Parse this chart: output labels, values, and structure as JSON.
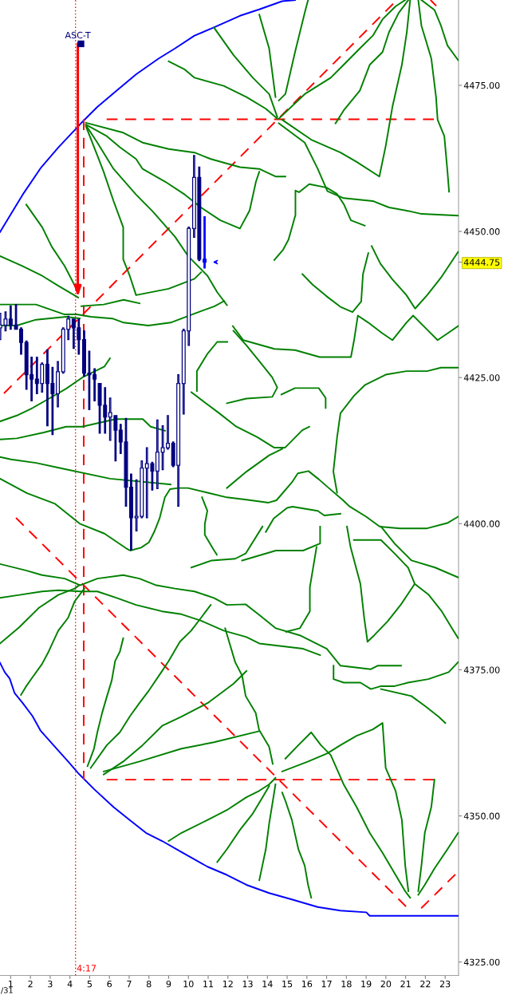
{
  "chart_data": {
    "type": "candlestick",
    "x": [
      0.47,
      0.74,
      1.0,
      1.27,
      1.53,
      1.8,
      2.06,
      2.33,
      2.59,
      2.86,
      3.12,
      3.39,
      3.66,
      3.92,
      4.19,
      4.45,
      4.72,
      4.98,
      5.25,
      5.51,
      5.78,
      6.04,
      6.31,
      6.57,
      6.84,
      7.1,
      7.37,
      7.64,
      7.9,
      8.17,
      8.43,
      8.7,
      8.96,
      9.23,
      9.49,
      9.76,
      10.02,
      10.29,
      10.55,
      10.82
    ],
    "ohlc": [
      [
        4433.5,
        4436.0,
        4431.5,
        4434.0
      ],
      [
        4434.0,
        4436.25,
        4433.0,
        4435.0
      ],
      [
        4435.0,
        4437.25,
        4433.25,
        4434.0
      ],
      [
        4434.0,
        4437.5,
        4433.25,
        4433.25
      ],
      [
        4433.25,
        4433.5,
        4429.0,
        4431.0
      ],
      [
        4431.0,
        4431.25,
        4423.0,
        4425.5
      ],
      [
        4425.5,
        4428.5,
        4421.0,
        4424.75
      ],
      [
        4424.75,
        4428.5,
        4422.25,
        4424.0
      ],
      [
        4424.0,
        4427.5,
        4422.5,
        4427.25
      ],
      [
        4427.25,
        4429.75,
        4416.75,
        4424.0
      ],
      [
        4424.0,
        4426.75,
        4415.25,
        4422.25
      ],
      [
        4422.25,
        4427.75,
        4420.0,
        4426.0
      ],
      [
        4426.0,
        4433.5,
        4425.75,
        4433.25
      ],
      [
        4433.25,
        4435.5,
        4431.5,
        4435.0
      ],
      [
        4435.0,
        4435.0,
        4430.0,
        4433.5
      ],
      [
        4433.5,
        4435.0,
        4429.0,
        4431.5
      ],
      [
        4431.5,
        4433.0,
        4425.25,
        4425.75
      ],
      [
        4425.75,
        4429.5,
        4419.5,
        4425.5
      ],
      [
        4425.5,
        4426.5,
        4421.0,
        4424.75
      ],
      [
        4424.0,
        4424.0,
        4415.5,
        4420.25
      ],
      [
        4420.25,
        4423.25,
        4415.5,
        4418.25
      ],
      [
        4418.25,
        4421.5,
        4414.25,
        4419.0
      ],
      [
        4418.5,
        4418.5,
        4410.75,
        4416.0
      ],
      [
        4416.0,
        4417.0,
        4412.0,
        4414.0
      ],
      [
        4414.0,
        4418.0,
        4403.0,
        4406.25
      ],
      [
        4406.25,
        4408.5,
        4395.5,
        4401.0
      ],
      [
        4401.0,
        4407.5,
        4398.75,
        4401.25
      ],
      [
        4401.25,
        4410.75,
        4401.0,
        4409.5
      ],
      [
        4409.5,
        4413.0,
        4401.0,
        4410.25
      ],
      [
        4410.25,
        4410.5,
        4405.75,
        4409.0
      ],
      [
        4409.0,
        4417.75,
        4406.0,
        4412.25
      ],
      [
        4412.25,
        4416.75,
        4409.25,
        4413.0
      ],
      [
        4413.0,
        4418.5,
        4412.75,
        4413.75
      ],
      [
        4413.75,
        4414.0,
        4409.75,
        4410.0
      ],
      [
        4410.0,
        4425.5,
        4403.0,
        4424.0
      ],
      [
        4424.0,
        4433.25,
        4418.75,
        4433.0
      ],
      [
        4433.0,
        4450.75,
        4430.5,
        4450.5
      ],
      [
        4450.5,
        4463.0,
        4449.0,
        4459.25
      ],
      [
        4459.25,
        4461.0,
        4445.0,
        4445.25
      ],
      [
        4445.25,
        4452.5,
        4443.75,
        4444.75
      ]
    ],
    "colors": [
      "#000080",
      "#000080",
      "#000080",
      "#000080",
      "#000080",
      "#000080",
      "#000080",
      "#000080",
      "#000080",
      "#000080",
      "#000080",
      "#000080",
      "#000080",
      "#000080",
      "#000080",
      "#000080",
      "#000080",
      "#000080",
      "#000080",
      "#000080",
      "#000080",
      "#000080",
      "#000080",
      "#000080",
      "#000080",
      "#000080",
      "#000080",
      "#000080",
      "#000080",
      "#000080",
      "#000080",
      "#000080",
      "#000080",
      "#000080",
      "#000080",
      "#000080",
      "#000080",
      "#000080",
      "#000080",
      "#0000ff"
    ],
    "xlim": [
      0.46,
      23.68
    ],
    "ylim": [
      4322.7,
      4489.6
    ],
    "xticks": [
      1,
      2,
      3,
      4,
      5,
      6,
      7,
      8,
      9,
      10,
      11,
      12,
      13,
      14,
      15,
      16,
      17,
      18,
      19,
      20,
      21,
      22,
      23
    ],
    "yticks": [
      {
        "value": 4325,
        "label": "4325.00"
      },
      {
        "value": 4350,
        "label": "4350.00"
      },
      {
        "value": 4375,
        "label": "4375.00"
      },
      {
        "value": 4400,
        "label": "4400.00"
      },
      {
        "value": 4425,
        "label": "4425.00"
      },
      4444.75,
      {
        "value": 4450,
        "label": "4450.00"
      },
      {
        "value": 4475,
        "label": "4475.00"
      }
    ],
    "ref_lines": [
      {
        "axis": "x",
        "value": 4.2833,
        "label": "4:17",
        "color": "#ff0000",
        "line_style": "dotted"
      }
    ],
    "annotations": [
      {
        "text": "ASC-T",
        "x": 4.4,
        "y": 4438.8
      },
      "/31"
    ],
    "series": [
      {
        "type": "line",
        "color": "#0000ff",
        "x": [
          0.46,
          1.61,
          2.51,
          3.42,
          4.56,
          5.39,
          6.37,
          7.36,
          8.5,
          9.32,
          10.31,
          11.29,
          12.61,
          13.59,
          14.75,
          15.4
        ],
        "values": [
          4449.9,
          4456.3,
          4460.8,
          4464.4,
          4468.5,
          4471.3,
          4474.1,
          4476.9,
          4479.6,
          4481.3,
          4483.5,
          4484.9,
          4486.9,
          4488.0,
          4489.4,
          4489.6
        ]
      },
      {
        "type": "line",
        "color": "#0000ff",
        "x": [
          0.46,
          0.7,
          0.95,
          1.2,
          1.61,
          2.1,
          2.51,
          3.33,
          3.91,
          4.48,
          5.22,
          6.21,
          7.03,
          7.85,
          8.67,
          9.65,
          10.97,
          11.95,
          12.94,
          14.09,
          15.24,
          16.55,
          17.7,
          19.01,
          19.18,
          23.66
        ],
        "values": [
          4376.2,
          4374.6,
          4373.5,
          4371.0,
          4369.3,
          4367.1,
          4364.6,
          4361.5,
          4359.3,
          4357.1,
          4354.6,
          4351.5,
          4349.3,
          4347.1,
          4345.7,
          4343.8,
          4341.3,
          4339.9,
          4338.2,
          4336.8,
          4335.7,
          4334.4,
          4333.8,
          4333.5,
          4332.9,
          4332.9
        ]
      },
      {
        "type": "line",
        "color": "#ff0000",
        "line_style": "dashed",
        "x": [
          5.86,
          22.5
        ],
        "values": [
          4469.2,
          4469.2
        ]
      },
      {
        "type": "line",
        "color": "#ff0000",
        "line_style": "dashed",
        "x": [
          5.86,
          22.5
        ],
        "values": [
          4356.2,
          4356.2
        ]
      },
      {
        "type": "line",
        "color": "#ff0000",
        "line_style": "dashed",
        "x": [
          4.7,
          4.7
        ],
        "values": [
          4469.2,
          4356.2
        ]
      },
      {
        "type": "line",
        "color": "#ff0000",
        "line_style": "dashed",
        "x": [
          0.66,
          20.53
        ],
        "values": [
          4422.3,
          4489.5
        ]
      },
      {
        "type": "line",
        "color": "#ff0000",
        "line_style": "dashed",
        "x": [
          1.27,
          21.14
        ],
        "values": [
          4401.0,
          4334.1
        ]
      },
      {
        "type": "line",
        "color": "#ff0000",
        "line_style": "dashed",
        "x": [
          21.79,
          23.64
        ],
        "values": [
          4334.2,
          4340.4
        ]
      },
      {
        "type": "line",
        "color": "#ff0000",
        "line_style": "dashed",
        "x": [
          22.26,
          22.55
        ],
        "values": [
          4489.6,
          4488.6
        ]
      },
      {
        "type": "line",
        "color": "#008000",
        "x": [
          0.46,
          1.59,
          2.6,
          3.41,
          4.42
        ],
        "values": [
          4445.8,
          4444.1,
          4442.4,
          4440.7,
          4438.7
        ]
      },
      {
        "type": "line",
        "color": "#008000",
        "x": [
          1.79,
          2.6,
          3.08,
          3.73,
          4.42
        ],
        "values": [
          4454.6,
          4450.7,
          4447.4,
          4444.1,
          4439.6
        ]
      },
      {
        "type": "line",
        "color": "#008000",
        "x": [
          0.46,
          2.28,
          3.73,
          4.34,
          5.06,
          6.15,
          6.72,
          7.97,
          9.1,
          10.19,
          11.32,
          11.81
        ],
        "values": [
          4437.5,
          4437.5,
          4435.8,
          4435.8,
          4435.4,
          4435.1,
          4434.4,
          4433.9,
          4434.4,
          4435.8,
          4437.2,
          4438.1
        ]
      },
      {
        "type": "line",
        "color": "#008000",
        "x": [
          4.58,
          5.71,
          6.72,
          7.53
        ],
        "values": [
          4437.2,
          4437.5,
          4438.3,
          4437.7
        ]
      },
      {
        "type": "line",
        "color": "#008000",
        "x": [
          0.46,
          1.31,
          2.28,
          3.81,
          4.5
        ],
        "values": [
          4433.9,
          4433.9,
          4434.9,
          4435.4,
          4435.1
        ]
      },
      {
        "type": "line",
        "color": "#008000",
        "x": [
          0.46,
          1.31,
          2.11,
          2.84,
          3.81,
          4.62,
          5.75,
          6.03
        ],
        "values": [
          4417.5,
          4418.5,
          4419.8,
          4421.2,
          4423.1,
          4425.0,
          4426.9,
          4428.3
        ]
      },
      {
        "type": "line",
        "color": "#008000",
        "x": [
          0.46,
          1.31,
          2.68,
          3.81,
          4.62,
          6.31,
          7.69,
          8.09,
          8.82
        ],
        "values": [
          4414.4,
          4414.6,
          4415.6,
          4416.6,
          4416.6,
          4417.9,
          4417.9,
          4416.6,
          4415.9
        ]
      },
      {
        "type": "line",
        "color": "#008000",
        "x": [
          0.46,
          1.02,
          2.28,
          3.53,
          6.03,
          9.1
        ],
        "values": [
          4411.4,
          4411.0,
          4410.4,
          4409.5,
          4407.7,
          4406.7
        ]
      },
      {
        "type": "line",
        "color": "#008000",
        "x": [
          0.46,
          1.83,
          3.25,
          4.5,
          5.75,
          6.84,
          7.05,
          7.6,
          8.0,
          8.27,
          8.54,
          8.81,
          9.07,
          9.48,
          9.98,
          10.97,
          11.95,
          12.94,
          14.06,
          14.46,
          15.27,
          15.54,
          16.08,
          16.6,
          17.11,
          17.8,
          18.14,
          19.0,
          19.69,
          20.71,
          22.09,
          23.11,
          23.66
        ],
        "values": [
          4407.7,
          4405.2,
          4403.4,
          4400.0,
          4398.3,
          4395.8,
          4395.4,
          4395.9,
          4396.8,
          4398.6,
          4400.9,
          4404.5,
          4405.9,
          4406.1,
          4406.1,
          4405.3,
          4404.5,
          4404.1,
          4403.6,
          4404.0,
          4407.2,
          4408.6,
          4409.0,
          4407.6,
          4406.1,
          4404.1,
          4403.0,
          4401.2,
          4399.5,
          4399.2,
          4399.2,
          4400.1,
          4401.2
        ]
      },
      {
        "type": "line",
        "color": "#008000",
        "x": [
          4.81,
          6.7,
          7.68,
          9.0,
          10.31,
          11.13,
          12.61,
          13.59,
          14.41,
          14.91
        ],
        "values": [
          4468.6,
          4466.9,
          4465.2,
          4464.1,
          4463.5,
          4462.4,
          4461.0,
          4460.7,
          4459.4,
          4459.4
        ]
      },
      {
        "type": "line",
        "color": "#008000",
        "x": [
          4.81,
          5.87,
          6.53,
          7.35,
          7.68,
          8.83,
          9.82,
          10.64,
          11.62,
          12.61,
          13.1,
          13.42,
          13.59
        ],
        "values": [
          4468.3,
          4466.3,
          4464.4,
          4462.4,
          4460.7,
          4458.5,
          4456.3,
          4454.1,
          4451.9,
          4450.5,
          4453.6,
          4458.5,
          4460.2
        ]
      },
      {
        "type": "line",
        "color": "#008000",
        "x": [
          4.81,
          5.39,
          5.71,
          6.21,
          6.7,
          6.7,
          7.03,
          7.35,
          9.0,
          10.31,
          10.64
        ],
        "values": [
          4468.0,
          4463.0,
          4460.2,
          4455.2,
          4450.7,
          4445.2,
          4442.4,
          4439.1,
          4440.2,
          4441.9,
          4443.0
        ]
      },
      {
        "type": "line",
        "color": "#008000",
        "x": [
          4.81,
          5.39,
          6.21,
          7.35,
          8.17,
          9.32,
          9.98,
          10.97,
          11.46,
          11.95
        ],
        "values": [
          4468.2,
          4465.2,
          4460.7,
          4456.3,
          4453.5,
          4449.1,
          4445.8,
          4442.4,
          4439.6,
          4437.4
        ]
      },
      {
        "type": "line",
        "color": "#008000",
        "x": [
          9.0,
          9.82,
          10.31,
          11.79,
          12.94,
          13.92,
          14.5
        ],
        "values": [
          4479.1,
          4477.7,
          4476.3,
          4474.9,
          4473.0,
          4471.0,
          4469.3
        ]
      },
      {
        "type": "line",
        "color": "#008000",
        "x": [
          11.29,
          12.28,
          13.26,
          14.09,
          14.5
        ],
        "values": [
          4484.9,
          4480.2,
          4476.3,
          4473.5,
          4469.6
        ]
      },
      {
        "type": "line",
        "color": "#008000",
        "x": [
          13.59,
          14.09,
          14.41
        ],
        "values": [
          4487.1,
          4481.3,
          4473.0
        ]
      },
      {
        "type": "line",
        "color": "#008000",
        "x": [
          16.06,
          15.89,
          15.4,
          14.91,
          14.58
        ],
        "values": [
          4489.6,
          4487.4,
          4480.7,
          4473.5,
          4472.4
        ]
      },
      {
        "type": "line",
        "color": "#008000",
        "x": [
          14.58,
          15.89,
          17.21,
          17.86,
          18.68,
          19.34,
          19.83,
          20.49,
          20.98
        ],
        "values": [
          4469.3,
          4473.5,
          4476.3,
          4478.5,
          4481.3,
          4483.5,
          4486.3,
          4488.5,
          4489.6
        ]
      },
      {
        "type": "line",
        "color": "#008000",
        "x": [
          17.45,
          17.86,
          18.68,
          19.18,
          19.83,
          20.16,
          20.65,
          21.14
        ],
        "values": [
          4468.5,
          4470.7,
          4474.1,
          4478.5,
          4480.7,
          4484.1,
          4487.4,
          4489.6
        ]
      },
      {
        "type": "line",
        "color": "#008000",
        "x": [
          14.75,
          16.22,
          17.7,
          18.52,
          19.67,
          19.99,
          20.33,
          20.81,
          21.06,
          21.23
        ],
        "values": [
          4469.1,
          4465.7,
          4463.5,
          4461.9,
          4459.4,
          4464.6,
          4471.3,
          4478.5,
          4484.1,
          4489.6
        ]
      },
      {
        "type": "line",
        "color": "#008000",
        "x": [
          21.64,
          21.8,
          22.3,
          22.54,
          22.62,
          22.96,
          23.12,
          23.2
        ],
        "values": [
          4489.6,
          4485.2,
          4479.6,
          4473.0,
          4469.1,
          4466.3,
          4460.2,
          4456.8
        ]
      },
      {
        "type": "line",
        "color": "#008000",
        "x": [
          21.8,
          22.46,
          22.79,
          23.12,
          23.66
        ],
        "values": [
          4489.6,
          4487.9,
          4485.2,
          4481.8,
          4479.3
        ]
      },
      {
        "type": "line",
        "color": "#008000",
        "x": [
          14.58,
          15.89,
          16.55,
          17.04,
          17.86,
          19.34,
          20.16,
          21.14,
          21.8,
          23.66
        ],
        "values": [
          4468.5,
          4465.2,
          4460.7,
          4456.9,
          4455.7,
          4455.2,
          4454.1,
          4453.5,
          4453.0,
          4452.7
        ]
      },
      {
        "type": "line",
        "color": "#008000",
        "x": [
          4.89,
          5.22,
          5.39,
          5.63,
          5.87,
          6.12,
          6.29,
          6.53,
          6.7
        ],
        "values": [
          4358.5,
          4361.5,
          4364.3,
          4367.6,
          4370.4,
          4373.2,
          4376.5,
          4378.1,
          4380.4
        ]
      },
      {
        "type": "line",
        "color": "#008000",
        "x": [
          5.05,
          5.87,
          6.53,
          7.03,
          7.52,
          8.01,
          8.67,
          9.0,
          9.57,
          10.14,
          10.64,
          11.13
        ],
        "values": [
          4358.2,
          4362.1,
          4364.3,
          4367.0,
          4369.3,
          4371.5,
          4374.8,
          4376.5,
          4379.8,
          4381.7,
          4383.9,
          4386.1
        ]
      },
      {
        "type": "line",
        "color": "#008000",
        "x": [
          5.71,
          7.52,
          9.65,
          11.29,
          13.58
        ],
        "values": [
          4357.6,
          4359.3,
          4361.5,
          4362.6,
          4364.5
        ]
      },
      {
        "type": "line",
        "color": "#008000",
        "x": [
          5.71,
          6.7,
          7.68,
          8.67,
          9.65,
          10.97,
          12.28,
          12.94
        ],
        "values": [
          4357.1,
          4359.3,
          4362.1,
          4365.4,
          4367.0,
          4369.3,
          4372.6,
          4374.8
        ]
      },
      {
        "type": "line",
        "color": "#008000",
        "x": [
          9.0,
          9.65,
          10.97,
          11.95,
          12.94,
          13.59,
          14.09,
          14.41
        ],
        "values": [
          4345.7,
          4347.1,
          4349.3,
          4351.0,
          4353.2,
          4354.3,
          4355.4,
          4356.5
        ]
      },
      {
        "type": "line",
        "color": "#008000",
        "x": [
          11.46,
          11.95,
          12.61,
          13.26,
          13.76,
          14.09
        ],
        "values": [
          4342.1,
          4344.3,
          4347.6,
          4350.4,
          4353.2,
          4355.1
        ]
      },
      {
        "type": "line",
        "color": "#008000",
        "x": [
          13.59,
          13.92,
          14.09,
          14.33,
          14.41
        ],
        "values": [
          4339.0,
          4344.3,
          4348.7,
          4353.7,
          4355.4
        ]
      },
      {
        "type": "line",
        "color": "#008000",
        "x": [
          16.22,
          16.06,
          15.89,
          15.57,
          15.24,
          14.91,
          14.75
        ],
        "values": [
          4336.0,
          4338.2,
          4341.5,
          4344.3,
          4349.3,
          4352.6,
          4354.0
        ]
      },
      {
        "type": "line",
        "color": "#008000",
        "x": [
          14.91,
          15.57,
          16.22,
          16.71,
          17.21,
          17.86,
          18.52,
          19.18,
          19.83,
          20.49,
          20.98,
          21.23
        ],
        "values": [
          4359.8,
          4362.1,
          4364.3,
          4362.1,
          4360.4,
          4355.4,
          4351.5,
          4347.1,
          4343.7,
          4339.9,
          4337.1,
          4336.0
        ]
      },
      {
        "type": "line",
        "color": "#008000",
        "x": [
          14.75,
          16.06,
          17.04,
          17.7,
          18.52,
          19.34,
          19.83,
          19.99,
          20.49,
          20.81,
          20.98,
          21.14
        ],
        "values": [
          4357.6,
          4359.3,
          4360.7,
          4362.1,
          4363.7,
          4364.8,
          4365.9,
          4358.2,
          4354.3,
          4349.3,
          4341.5,
          4337.1
        ]
      },
      {
        "type": "line",
        "color": "#008000",
        "x": [
          22.46,
          22.3,
          21.97,
          21.8,
          21.64
        ],
        "values": [
          4356.2,
          4351.5,
          4347.1,
          4341.5,
          4337.1
        ]
      },
      {
        "type": "line",
        "color": "#008000",
        "x": [
          23.66,
          23.12,
          22.46,
          21.97,
          21.64
        ],
        "values": [
          4347.1,
          4344.3,
          4341.0,
          4338.2,
          4336.5
        ]
      },
      {
        "type": "line",
        "color": "#008000",
        "x": [
          0.46,
          1.77,
          2.59,
          3.74,
          4.48,
          4.56,
          5.39,
          6.7,
          7.52,
          8.33,
          9.32,
          10.31,
          11.29,
          11.95,
          12.9,
          13.58,
          14.43,
          15.64,
          17.01,
          17.7,
          19.24,
          19.58,
          20.77
        ],
        "values": [
          4393.1,
          4392.0,
          4391.2,
          4390.6,
          4389.5,
          4389.5,
          4390.6,
          4391.2,
          4390.6,
          4389.5,
          4388.9,
          4388.4,
          4387.3,
          4386.1,
          4386.2,
          4384.4,
          4382.1,
          4380.9,
          4378.6,
          4375.7,
          4375.1,
          4375.7,
          4375.7
        ]
      },
      {
        "type": "line",
        "color": "#008000",
        "x": [
          0.46,
          1.44,
          2.59,
          3.41,
          4.56,
          5.39,
          6.37,
          7.35,
          8.67,
          9.65,
          10.64,
          11.79,
          12.94,
          13.59,
          15.81,
          16.67
        ],
        "values": [
          4387.3,
          4387.8,
          4388.4,
          4388.6,
          4388.4,
          4388.4,
          4387.3,
          4386.1,
          4385.0,
          4384.5,
          4383.4,
          4381.7,
          4380.6,
          4379.5,
          4378.6,
          4377.5
        ]
      },
      {
        "type": "line",
        "color": "#008000",
        "x": [
          0.46,
          1.44,
          2.43,
          3.41,
          4.24,
          4.48
        ],
        "values": [
          4379.5,
          4382.3,
          4385.6,
          4387.8,
          4388.9,
          4389.5
        ]
      },
      {
        "type": "line",
        "color": "#008000",
        "x": [
          1.52,
          1.77,
          2.1,
          2.59,
          2.92,
          3.41,
          3.91,
          4.24,
          4.73
        ],
        "values": [
          4370.7,
          4372.1,
          4373.7,
          4376.0,
          4378.1,
          4381.7,
          4383.9,
          4386.7,
          4388.9
        ]
      },
      {
        "type": "line",
        "color": "#008000",
        "x": [
          11.95,
          12.94,
          14.09,
          14.75
        ],
        "values": [
          4406.1,
          4408.9,
          4411.7,
          4412.8
        ]
      },
      {
        "type": "line",
        "color": "#008000",
        "x": [
          12.28,
          12.94,
          13.59,
          14.25,
          14.5,
          14.25,
          12.94,
          11.95
        ],
        "values": [
          4433.0,
          4430.5,
          4427.8,
          4425.0,
          4423.3,
          4421.7,
          4421.4,
          4420.6
        ]
      },
      {
        "type": "line",
        "color": "#008000",
        "x": [
          10.43,
          10.43,
          10.95,
          11.46,
          11.97
        ],
        "values": [
          4422.7,
          4426.1,
          4429.0,
          4431.1,
          4431.1
        ]
      },
      {
        "type": "line",
        "color": "#008000",
        "x": [
          14.71,
          15.4,
          16.6,
          16.95,
          16.95
        ],
        "values": [
          4422.1,
          4423.2,
          4423.2,
          4421.5,
          4419.8
        ]
      },
      {
        "type": "line",
        "color": "#008000",
        "x": [
          10.69,
          10.96,
          10.83,
          10.83,
          11.23,
          11.44
        ],
        "values": [
          4404.5,
          4402.2,
          4399.9,
          4398.1,
          4395.8,
          4394.7
        ]
      },
      {
        "type": "line",
        "color": "#008000",
        "x": [
          13.92,
          14.32,
          15.0,
          15.27,
          16.55,
          16.88,
          17.7
        ],
        "values": [
          4398.6,
          4400.9,
          4402.7,
          4402.9,
          4402.2,
          4401.4,
          4401.7
        ]
      },
      {
        "type": "line",
        "color": "#008000",
        "x": [
          19.28,
          19.72,
          20.33,
          21.04,
          21.48,
          22.09,
          22.79,
          23.5,
          23.66
        ],
        "values": [
          4447.5,
          4444.5,
          4441.8,
          4439.1,
          4436.8,
          4439.1,
          4442.1,
          4445.7,
          4446.5
        ]
      },
      {
        "type": "line",
        "color": "#008000",
        "x": [
          15.77,
          16.29,
          17.0,
          17.7,
          18.31,
          18.75,
          18.84,
          19.11
        ],
        "values": [
          4442.7,
          4440.9,
          4438.9,
          4437.1,
          4436.2,
          4438.0,
          4442.7,
          4446.3
        ]
      },
      {
        "type": "line",
        "color": "#008000",
        "x": [
          14.35,
          14.8,
          15.07,
          15.42,
          15.42,
          15.6,
          16.12,
          17.0,
          17.53,
          17.88,
          18.23,
          18.93
        ],
        "values": [
          4445.1,
          4446.9,
          4448.6,
          4452.8,
          4457.0,
          4456.7,
          4458.1,
          4457.5,
          4456.4,
          4454.6,
          4451.9,
          4451.0
        ]
      },
      {
        "type": "line",
        "color": "#008000",
        "x": [
          12.25,
          12.78,
          14.35,
          15.4,
          16.65,
          18.23,
          18.39,
          18.58,
          19.11,
          19.81,
          20.33,
          21.04,
          21.38,
          22.09,
          22.62,
          23.14,
          23.66
        ],
        "values": [
          4433.8,
          4431.4,
          4429.9,
          4429.7,
          4428.5,
          4428.5,
          4431.4,
          4435.6,
          4434.4,
          4432.6,
          4431.4,
          4434.4,
          4435.6,
          4433.2,
          4431.4,
          4432.6,
          4433.8
        ]
      },
      {
        "type": "line",
        "color": "#008000",
        "x": [
          10.15,
          10.85,
          11.56,
          12.43,
          13.49,
          14.35,
          14.89,
          15.77,
          16.12
        ],
        "values": [
          4422.5,
          4420.7,
          4418.9,
          4416.6,
          4414.8,
          4413.0,
          4413.0,
          4416.0,
          4416.6
        ]
      },
      {
        "type": "line",
        "color": "#008000",
        "x": [
          17.53,
          17.34,
          17.53,
          17.7,
          18.39,
          18.93,
          19.99,
          21.04,
          22.09,
          22.79,
          23.66
        ],
        "values": [
          4405.3,
          4408.9,
          4414.8,
          4418.9,
          4421.9,
          4423.7,
          4425.5,
          4426.1,
          4426.1,
          4426.7,
          4426.7
        ]
      },
      {
        "type": "line",
        "color": "#008000",
        "x": [
          10.15,
          11.18,
          12.37,
          12.9,
          13.75
        ],
        "values": [
          4392.5,
          4393.7,
          4394.0,
          4394.9,
          4399.5
        ]
      },
      {
        "type": "line",
        "color": "#008000",
        "x": [
          12.72,
          14.43,
          15.81,
          16.67,
          16.67
        ],
        "values": [
          4393.7,
          4395.4,
          4395.4,
          4396.6,
          4399.5
        ]
      },
      {
        "type": "line",
        "color": "#008000",
        "x": [
          16.49,
          16.15,
          16.15,
          15.64,
          14.95
        ],
        "values": [
          4396.0,
          4389.1,
          4385.0,
          4382.1,
          4381.5
        ]
      },
      {
        "type": "line",
        "color": "#008000",
        "x": [
          18.03,
          18.21,
          18.71,
          18.9,
          19.07,
          19.41,
          20.09,
          20.77,
          21.46,
          21.12,
          20.44,
          19.75,
          18.38
        ],
        "values": [
          4399.5,
          4396.0,
          4389.7,
          4383.9,
          4379.8,
          4380.9,
          4383.3,
          4386.2,
          4389.7,
          4392.5,
          4394.9,
          4397.2,
          4397.2
        ]
      },
      {
        "type": "line",
        "color": "#008000",
        "x": [
          21.46,
          22.15,
          22.83,
          23.35,
          23.66
        ],
        "values": [
          4389.7,
          4387.9,
          4385.0,
          4382.1,
          4380.4
        ]
      },
      {
        "type": "line",
        "color": "#008000",
        "x": [
          19.75,
          20.44,
          21.3,
          22.49,
          23.66
        ],
        "values": [
          4399.5,
          4396.6,
          4393.7,
          4392.5,
          4390.8
        ]
      },
      {
        "type": "line",
        "color": "#008000",
        "x": [
          17.35,
          17.35,
          17.87,
          18.71,
          19.24,
          19.75,
          20.44,
          21.12,
          22.15,
          23.18,
          23.66
        ],
        "values": [
          4375.7,
          4373.4,
          4372.8,
          4372.8,
          4371.7,
          4372.2,
          4372.2,
          4372.8,
          4373.4,
          4374.6,
          4376.3
        ]
      },
      {
        "type": "line",
        "color": "#008000",
        "x": [
          11.86,
          12.37,
          12.72,
          12.9,
          13.41,
          13.58,
          14.09,
          14.27
        ],
        "values": [
          4382.1,
          4376.3,
          4374.0,
          4370.5,
          4367.6,
          4364.7,
          4361.8,
          4358.9
        ]
      },
      {
        "type": "line",
        "color": "#008000",
        "x": [
          19.75,
          21.29,
          21.98,
          22.66,
          23.01
        ],
        "values": [
          4371.7,
          4370.5,
          4368.8,
          4367.0,
          4365.9
        ]
      },
      {
        "type": "scatter",
        "marker": "square",
        "color": "#000080",
        "x": [
          4.56
        ],
        "values": [
          4482.1
        ]
      }
    ]
  }
}
